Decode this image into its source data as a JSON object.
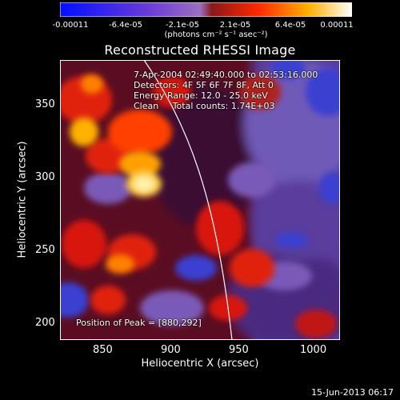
{
  "colorbar": {
    "ticks": [
      "-0.00011",
      "-6.4e-05",
      "-2.1e-05",
      "2.1e-05",
      "6.4e-05",
      "0.00011"
    ],
    "units": "(photons cm⁻² s⁻¹ asec⁻²)",
    "colors": [
      "#0000ff",
      "#5a2dc8",
      "#8a5cb6",
      "#b0201e",
      "#ff4000",
      "#ffb000",
      "#ffffff"
    ]
  },
  "title": "Reconstructed RHESSI Image",
  "info": {
    "time_range": "7-Apr-2004 02:49:40.000 to 02:53:16.000",
    "detectors": "Detectors: 4F 5F 6F 7F 8F, Att 0",
    "energy": "Energy Range: 12.0 - 25.0 keV",
    "clean": "Clean     Total counts: 1.74E+03",
    "peak": "Position of Peak = [880,292]"
  },
  "axes": {
    "xlabel": "Heliocentric X (arcsec)",
    "ylabel": "Heliocentric Y (arcsec)",
    "xticks": [
      "850",
      "900",
      "950",
      "1000"
    ],
    "yticks": [
      "350",
      "300",
      "250",
      "200"
    ]
  },
  "footer": {
    "date": "15-Jun-2013 06:17"
  }
}
